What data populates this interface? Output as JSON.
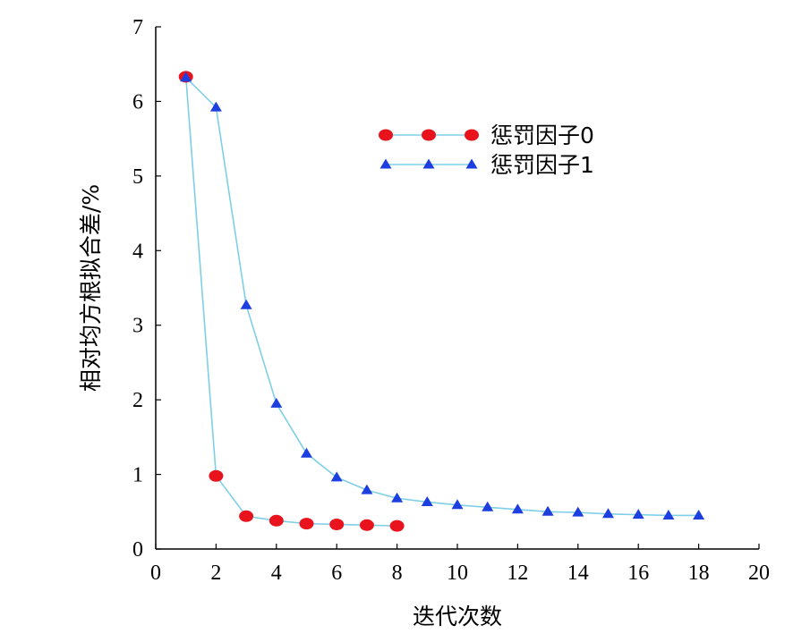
{
  "chart_data": {
    "type": "line",
    "xlabel": "迭代次数",
    "ylabel": "相对均方根拟合差/%",
    "xlim": [
      0,
      20
    ],
    "ylim": [
      0,
      7
    ],
    "xticks": [
      0,
      2,
      4,
      6,
      8,
      10,
      12,
      14,
      16,
      18,
      20
    ],
    "yticks": [
      0,
      1,
      2,
      3,
      4,
      5,
      6,
      7
    ],
    "grid": false,
    "legend_position": "top-right",
    "line_color": "#7ecfe6",
    "series": [
      {
        "name": "惩罚因子0",
        "marker": "circle",
        "marker_color": "#e8131c",
        "x": [
          1,
          2,
          3,
          4,
          5,
          6,
          7,
          8
        ],
        "values": [
          6.33,
          0.98,
          0.44,
          0.38,
          0.34,
          0.33,
          0.32,
          0.31
        ]
      },
      {
        "name": "惩罚因子1",
        "marker": "triangle",
        "marker_color": "#1d3fe0",
        "x": [
          1,
          2,
          3,
          4,
          5,
          6,
          7,
          8,
          9,
          10,
          11,
          12,
          13,
          14,
          15,
          16,
          17,
          18
        ],
        "values": [
          6.32,
          5.92,
          3.27,
          1.95,
          1.28,
          0.96,
          0.79,
          0.68,
          0.63,
          0.59,
          0.56,
          0.53,
          0.5,
          0.49,
          0.47,
          0.46,
          0.45,
          0.45
        ]
      }
    ]
  }
}
